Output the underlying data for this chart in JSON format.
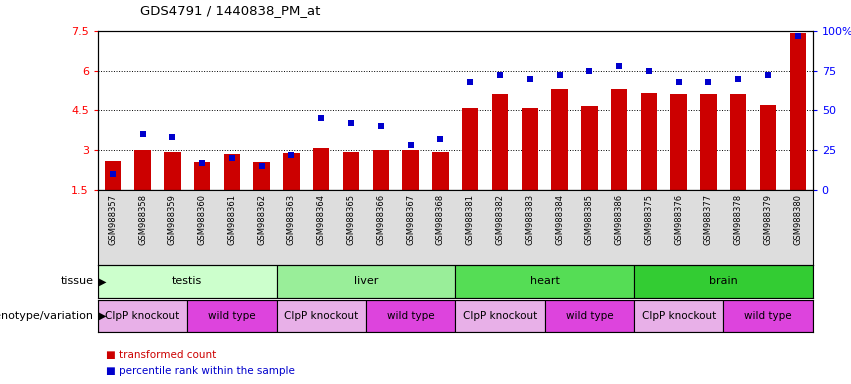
{
  "title": "GDS4791 / 1440838_PM_at",
  "samples": [
    "GSM988357",
    "GSM988358",
    "GSM988359",
    "GSM988360",
    "GSM988361",
    "GSM988362",
    "GSM988363",
    "GSM988364",
    "GSM988365",
    "GSM988366",
    "GSM988367",
    "GSM988368",
    "GSM988381",
    "GSM988382",
    "GSM988383",
    "GSM988384",
    "GSM988385",
    "GSM988386",
    "GSM988375",
    "GSM988376",
    "GSM988377",
    "GSM988378",
    "GSM988379",
    "GSM988380"
  ],
  "bar_values": [
    2.6,
    3.0,
    2.95,
    2.55,
    2.85,
    2.55,
    2.9,
    3.1,
    2.95,
    3.0,
    3.0,
    2.95,
    4.6,
    5.1,
    4.6,
    5.3,
    4.65,
    5.3,
    5.15,
    5.1,
    5.1,
    5.1,
    4.7,
    7.4
  ],
  "dot_values": [
    10,
    35,
    33,
    17,
    20,
    15,
    22,
    45,
    42,
    40,
    28,
    32,
    68,
    72,
    70,
    72,
    75,
    78,
    75,
    68,
    68,
    70,
    72,
    97
  ],
  "bar_bottom": 1.5,
  "ylim_left": [
    1.5,
    7.5
  ],
  "ylim_right": [
    0,
    100
  ],
  "yticks_left": [
    1.5,
    3.0,
    4.5,
    6.0,
    7.5
  ],
  "ytick_labels_left": [
    "1.5",
    "3",
    "4.5",
    "6",
    "7.5"
  ],
  "yticks_right": [
    0,
    25,
    50,
    75,
    100
  ],
  "ytick_labels_right": [
    "0",
    "25",
    "50",
    "75",
    "100%"
  ],
  "hlines": [
    3.0,
    4.5,
    6.0
  ],
  "bar_color": "#cc0000",
  "dot_color": "#0000cc",
  "tissues": [
    {
      "label": "testis",
      "start": 0,
      "end": 6,
      "color": "#ccffcc"
    },
    {
      "label": "liver",
      "start": 6,
      "end": 12,
      "color": "#99ee99"
    },
    {
      "label": "heart",
      "start": 12,
      "end": 18,
      "color": "#55dd55"
    },
    {
      "label": "brain",
      "start": 18,
      "end": 24,
      "color": "#33cc33"
    }
  ],
  "genotypes": [
    {
      "label": "ClpP knockout",
      "start": 0,
      "end": 3,
      "color": "#e8b0e8"
    },
    {
      "label": "wild type",
      "start": 3,
      "end": 6,
      "color": "#dd44dd"
    },
    {
      "label": "ClpP knockout",
      "start": 6,
      "end": 9,
      "color": "#e8b0e8"
    },
    {
      "label": "wild type",
      "start": 9,
      "end": 12,
      "color": "#dd44dd"
    },
    {
      "label": "ClpP knockout",
      "start": 12,
      "end": 15,
      "color": "#e8b0e8"
    },
    {
      "label": "wild type",
      "start": 15,
      "end": 18,
      "color": "#dd44dd"
    },
    {
      "label": "ClpP knockout",
      "start": 18,
      "end": 21,
      "color": "#e8b0e8"
    },
    {
      "label": "wild type",
      "start": 21,
      "end": 24,
      "color": "#dd44dd"
    }
  ],
  "xticklabel_bg": "#dddddd",
  "legend_red": "transformed count",
  "legend_blue": "percentile rank within the sample",
  "tissue_label": "tissue",
  "genotype_label": "genotype/variation"
}
